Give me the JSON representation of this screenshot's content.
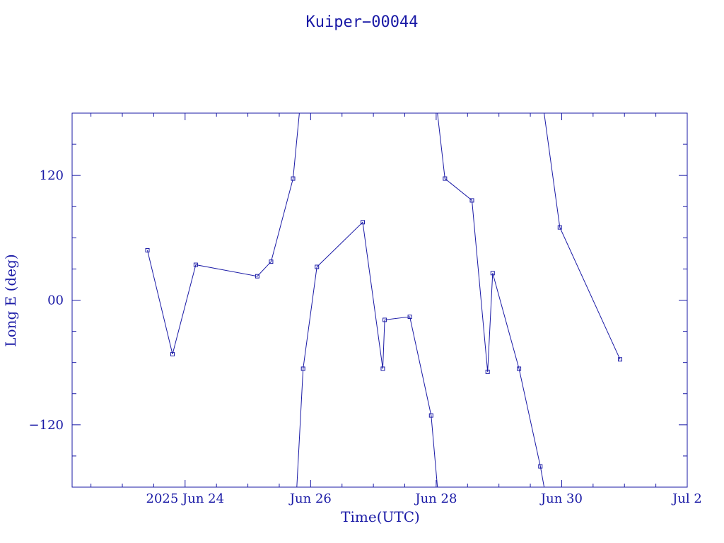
{
  "chart_data": {
    "type": "line",
    "title": "Kuiper−00044",
    "xlabel": "Time(UTC)",
    "ylabel": "Long E (deg)",
    "x_unit": "days (June 2025)",
    "xlim": [
      22.2,
      32.0
    ],
    "ylim": [
      -180,
      180
    ],
    "x_ticks": [
      {
        "x": 24,
        "label": "2025 Jun 24"
      },
      {
        "x": 26,
        "label": "Jun 26"
      },
      {
        "x": 28,
        "label": "Jun 28"
      },
      {
        "x": 30,
        "label": "Jun 30"
      },
      {
        "x": 32,
        "label": "Jul  2"
      }
    ],
    "y_ticks": [
      {
        "y": 120,
        "label": "120"
      },
      {
        "y": 0,
        "label": "00"
      },
      {
        "y": -120,
        "label": "−120"
      }
    ],
    "color": "#1a1aa6",
    "grid": false,
    "segments": [
      [
        [
          23.4,
          48
        ],
        [
          23.8,
          -52
        ],
        [
          24.17,
          34
        ],
        [
          25.15,
          23
        ],
        [
          25.37,
          37
        ],
        [
          25.72,
          117
        ],
        [
          25.82,
          180
        ]
      ],
      [
        [
          25.78,
          -180
        ],
        [
          25.88,
          -66
        ],
        [
          26.1,
          32
        ],
        [
          26.83,
          75
        ],
        [
          27.15,
          -66
        ],
        [
          27.18,
          -19
        ],
        [
          27.58,
          -16
        ],
        [
          27.92,
          -111
        ],
        [
          28.02,
          -180
        ]
      ],
      [
        [
          28.02,
          180
        ],
        [
          28.14,
          117
        ],
        [
          28.57,
          96
        ],
        [
          28.82,
          -69
        ],
        [
          28.9,
          26
        ],
        [
          29.32,
          -66
        ],
        [
          29.66,
          -160
        ],
        [
          29.72,
          -180
        ]
      ],
      [
        [
          29.72,
          180
        ],
        [
          29.97,
          70
        ],
        [
          30.93,
          -57
        ]
      ]
    ]
  }
}
